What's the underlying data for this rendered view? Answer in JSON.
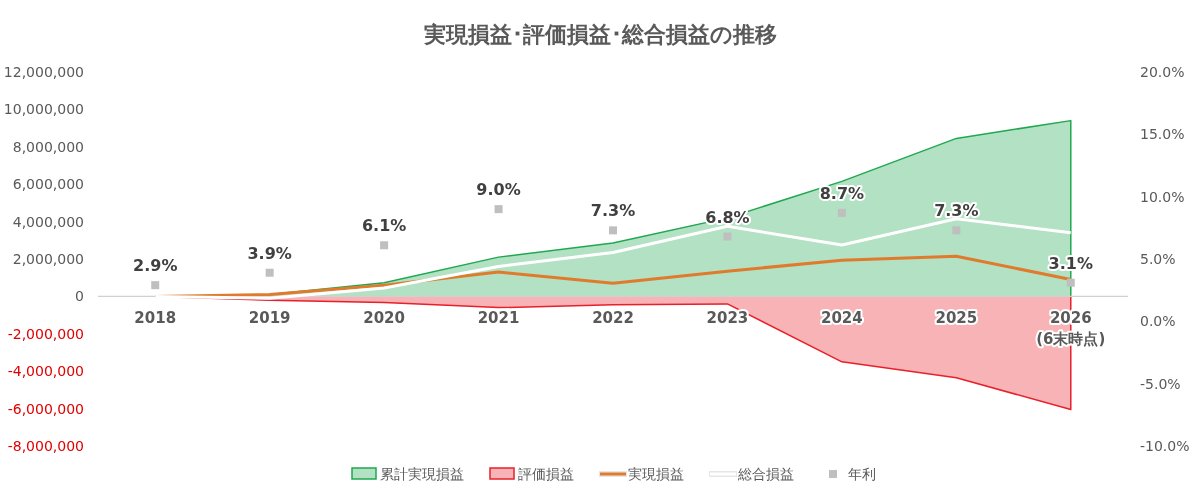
{
  "chart_data": {
    "type": "area",
    "title": "実現損益･評価損益･総合損益の推移",
    "categories": [
      "2018",
      "2019",
      "2020",
      "2021",
      "2022",
      "2023",
      "2024",
      "2025",
      "2026\n(6末時点)"
    ],
    "series": [
      {
        "name": "累計実現損益",
        "color": "#1fa850",
        "values": [
          0,
          100000,
          730000,
          2100000,
          2850000,
          4200000,
          6150000,
          8450000,
          9400000
        ]
      },
      {
        "name": "評価損益",
        "color": "#e8202a",
        "values": [
          0,
          -200000,
          -330000,
          -600000,
          -450000,
          -400000,
          -3500000,
          -4350000,
          -6050000
        ]
      },
      {
        "name": "実現損益",
        "type": "line",
        "color": "#e07b2e",
        "values": [
          0,
          100000,
          600000,
          1300000,
          700000,
          1350000,
          1930000,
          2150000,
          900000
        ]
      },
      {
        "name": "総合損益",
        "type": "line",
        "color": "#ffffff",
        "values": [
          0,
          -100000,
          450000,
          1600000,
          2350000,
          3750000,
          2750000,
          4150000,
          3400000
        ]
      },
      {
        "name": "年利",
        "type": "scatter",
        "axis": "y2",
        "marker": "square",
        "color": "#bfbfbf",
        "values": [
          2.9,
          3.9,
          6.1,
          9.0,
          7.3,
          6.8,
          8.7,
          7.3,
          3.1
        ],
        "value_labels": [
          "2.9%",
          "3.9%",
          "6.1%",
          "9.0%",
          "7.3%",
          "6.8%",
          "8.7%",
          "7.3%",
          "3.1%"
        ]
      }
    ],
    "ylim": [
      -8000000,
      12000000
    ],
    "yticks": [
      {
        "value": -8000000,
        "label": "-8,000,000"
      },
      {
        "value": -6000000,
        "label": "-6,000,000"
      },
      {
        "value": -4000000,
        "label": "-4,000,000"
      },
      {
        "value": -2000000,
        "label": "-2,000,000"
      },
      0,
      {
        "value": 2000000,
        "label": "2,000,000"
      },
      {
        "value": 4000000,
        "label": "4,000,000"
      },
      {
        "value": 6000000,
        "label": "6,000,000"
      },
      {
        "value": 8000000,
        "label": "8,000,000"
      },
      {
        "value": 10000000,
        "label": "10,000,000"
      },
      {
        "value": 12000000,
        "label": "12,000,000"
      }
    ],
    "y2lim": [
      -10,
      20
    ],
    "y2ticks": [
      {
        "value": -10,
        "label": "-10.0%"
      },
      {
        "value": -5,
        "label": "-5.0%"
      },
      {
        "value": 0,
        "label": "0.0%"
      },
      {
        "value": 5,
        "label": "5.0%"
      },
      {
        "value": 10,
        "label": "10.0%"
      },
      {
        "value": 15,
        "label": "15.0%"
      },
      {
        "value": 20,
        "label": "20.0%"
      }
    ],
    "grid": false,
    "legend": "bottom"
  }
}
